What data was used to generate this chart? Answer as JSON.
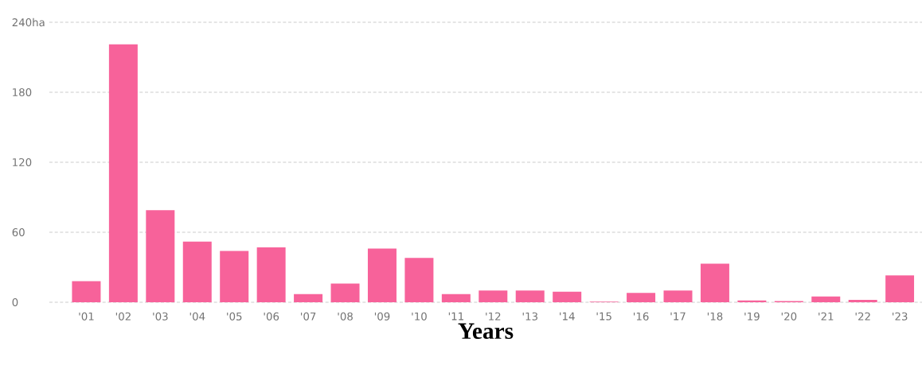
{
  "chart_data": {
    "type": "bar",
    "xlabel": "Years",
    "categories": [
      "'01",
      "'02",
      "'03",
      "'04",
      "'05",
      "'06",
      "'07",
      "'08",
      "'09",
      "'10",
      "'11",
      "'12",
      "'13",
      "'14",
      "'15",
      "'16",
      "'17",
      "'18",
      "'19",
      "'20",
      "'21",
      "'22",
      "'23"
    ],
    "values": [
      18,
      221,
      79,
      52,
      44,
      47,
      7,
      16,
      46,
      38,
      7,
      10,
      10,
      9,
      0.5,
      8,
      10,
      33,
      1.5,
      1,
      5,
      2,
      23
    ],
    "color": "#f7629a",
    "ylim": [
      0,
      240
    ],
    "yticks": [
      0,
      60,
      120,
      180,
      {
        "value": 240,
        "label": "240ha"
      }
    ],
    "grid": "y"
  }
}
